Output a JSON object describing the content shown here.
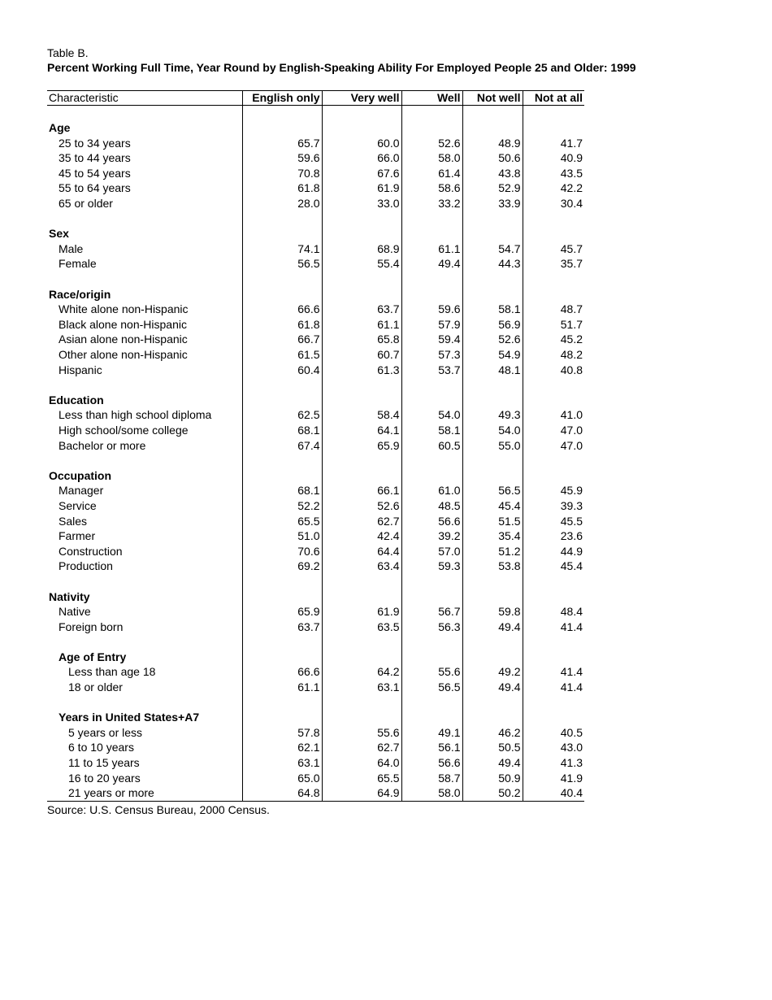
{
  "table_label": "Table B.",
  "title": "Percent Working Full Time, Year Round by English-Speaking Ability For Employed People 25 and Older: 1999",
  "columns": [
    "Characteristic",
    "English only",
    "Very well",
    "Well",
    "Not well",
    "Not at all"
  ],
  "rows": [
    {
      "type": "blank"
    },
    {
      "type": "section",
      "indent": 0,
      "label": "Age"
    },
    {
      "type": "item",
      "indent": 1,
      "label": "25 to 34 years",
      "values": [
        "65.7",
        "60.0",
        "52.6",
        "48.9",
        "41.7"
      ]
    },
    {
      "type": "item",
      "indent": 1,
      "label": "35 to 44 years",
      "values": [
        "59.6",
        "66.0",
        "58.0",
        "50.6",
        "40.9"
      ]
    },
    {
      "type": "item",
      "indent": 1,
      "label": "45 to 54 years",
      "values": [
        "70.8",
        "67.6",
        "61.4",
        "43.8",
        "43.5"
      ]
    },
    {
      "type": "item",
      "indent": 1,
      "label": "55 to 64 years",
      "values": [
        "61.8",
        "61.9",
        "58.6",
        "52.9",
        "42.2"
      ]
    },
    {
      "type": "item",
      "indent": 1,
      "label": "65 or older",
      "values": [
        "28.0",
        "33.0",
        "33.2",
        "33.9",
        "30.4"
      ]
    },
    {
      "type": "blank"
    },
    {
      "type": "section",
      "indent": 0,
      "label": "Sex"
    },
    {
      "type": "item",
      "indent": 1,
      "label": "Male",
      "values": [
        "74.1",
        "68.9",
        "61.1",
        "54.7",
        "45.7"
      ]
    },
    {
      "type": "item",
      "indent": 1,
      "label": "Female",
      "values": [
        "56.5",
        "55.4",
        "49.4",
        "44.3",
        "35.7"
      ]
    },
    {
      "type": "blank"
    },
    {
      "type": "section",
      "indent": 0,
      "label": "Race/origin"
    },
    {
      "type": "item",
      "indent": 1,
      "label": "White alone non-Hispanic",
      "values": [
        "66.6",
        "63.7",
        "59.6",
        "58.1",
        "48.7"
      ]
    },
    {
      "type": "item",
      "indent": 1,
      "label": "Black alone non-Hispanic",
      "values": [
        "61.8",
        "61.1",
        "57.9",
        "56.9",
        "51.7"
      ]
    },
    {
      "type": "item",
      "indent": 1,
      "label": "Asian alone non-Hispanic",
      "values": [
        "66.7",
        "65.8",
        "59.4",
        "52.6",
        "45.2"
      ]
    },
    {
      "type": "item",
      "indent": 1,
      "label": "Other alone non-Hispanic",
      "values": [
        "61.5",
        "60.7",
        "57.3",
        "54.9",
        "48.2"
      ]
    },
    {
      "type": "item",
      "indent": 1,
      "label": "Hispanic",
      "values": [
        "60.4",
        "61.3",
        "53.7",
        "48.1",
        "40.8"
      ]
    },
    {
      "type": "blank"
    },
    {
      "type": "section",
      "indent": 0,
      "label": "Education"
    },
    {
      "type": "item",
      "indent": 1,
      "label": "Less than high school diploma",
      "values": [
        "62.5",
        "58.4",
        "54.0",
        "49.3",
        "41.0"
      ]
    },
    {
      "type": "item",
      "indent": 1,
      "label": "High school/some college",
      "values": [
        "68.1",
        "64.1",
        "58.1",
        "54.0",
        "47.0"
      ]
    },
    {
      "type": "item",
      "indent": 1,
      "label": "Bachelor or more",
      "values": [
        "67.4",
        "65.9",
        "60.5",
        "55.0",
        "47.0"
      ]
    },
    {
      "type": "blank"
    },
    {
      "type": "section",
      "indent": 0,
      "label": "Occupation"
    },
    {
      "type": "item",
      "indent": 1,
      "label": "Manager",
      "values": [
        "68.1",
        "66.1",
        "61.0",
        "56.5",
        "45.9"
      ]
    },
    {
      "type": "item",
      "indent": 1,
      "label": "Service",
      "values": [
        "52.2",
        "52.6",
        "48.5",
        "45.4",
        "39.3"
      ]
    },
    {
      "type": "item",
      "indent": 1,
      "label": "Sales",
      "values": [
        "65.5",
        "62.7",
        "56.6",
        "51.5",
        "45.5"
      ]
    },
    {
      "type": "item",
      "indent": 1,
      "label": "Farmer",
      "values": [
        "51.0",
        "42.4",
        "39.2",
        "35.4",
        "23.6"
      ]
    },
    {
      "type": "item",
      "indent": 1,
      "label": "Construction",
      "values": [
        "70.6",
        "64.4",
        "57.0",
        "51.2",
        "44.9"
      ]
    },
    {
      "type": "item",
      "indent": 1,
      "label": "Production",
      "values": [
        "69.2",
        "63.4",
        "59.3",
        "53.8",
        "45.4"
      ]
    },
    {
      "type": "blank"
    },
    {
      "type": "section",
      "indent": 0,
      "label": "Nativity"
    },
    {
      "type": "item",
      "indent": 1,
      "label": "Native",
      "values": [
        "65.9",
        "61.9",
        "56.7",
        "59.8",
        "48.4"
      ]
    },
    {
      "type": "item",
      "indent": 1,
      "label": "Foreign born",
      "values": [
        "63.7",
        "63.5",
        "56.3",
        "49.4",
        "41.4"
      ]
    },
    {
      "type": "blank"
    },
    {
      "type": "section",
      "indent": 1,
      "label": "Age of Entry"
    },
    {
      "type": "item",
      "indent": 2,
      "label": "Less than age 18",
      "values": [
        "66.6",
        "64.2",
        "55.6",
        "49.2",
        "41.4"
      ]
    },
    {
      "type": "item",
      "indent": 2,
      "label": "18 or older",
      "values": [
        "61.1",
        "63.1",
        "56.5",
        "49.4",
        "41.4"
      ]
    },
    {
      "type": "blank"
    },
    {
      "type": "section",
      "indent": 1,
      "label": "Years in United States+A7"
    },
    {
      "type": "item",
      "indent": 2,
      "label": "5 years or less",
      "values": [
        "57.8",
        "55.6",
        "49.1",
        "46.2",
        "40.5"
      ]
    },
    {
      "type": "item",
      "indent": 2,
      "label": "6 to 10 years",
      "values": [
        "62.1",
        "62.7",
        "56.1",
        "50.5",
        "43.0"
      ]
    },
    {
      "type": "item",
      "indent": 2,
      "label": "11 to 15 years",
      "values": [
        "63.1",
        "64.0",
        "56.6",
        "49.4",
        "41.3"
      ]
    },
    {
      "type": "item",
      "indent": 2,
      "label": "16 to 20 years",
      "values": [
        "65.0",
        "65.5",
        "58.7",
        "50.9",
        "41.9"
      ]
    },
    {
      "type": "item",
      "indent": 2,
      "label": "21 years or more",
      "values": [
        "64.8",
        "64.9",
        "58.0",
        "50.2",
        "40.4"
      ]
    }
  ],
  "source": "Source: U.S. Census Bureau, 2000 Census."
}
